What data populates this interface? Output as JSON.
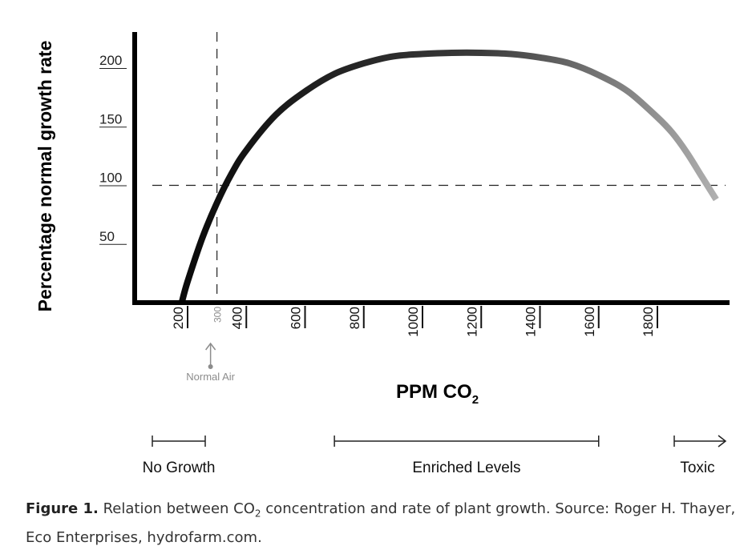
{
  "chart_data": {
    "type": "line",
    "ylabel": "Percentage normal growth rate",
    "xlabel_main": "PPM CO",
    "xlabel_sub": "2",
    "y_ticks": [
      50,
      100,
      150,
      200
    ],
    "x_ticks": [
      200,
      400,
      600,
      800,
      1000,
      1200,
      1400,
      1600,
      1800
    ],
    "normal_air": {
      "x": 300,
      "tick_label": "300",
      "label": "Normal Air"
    },
    "reference_line_y": 100,
    "series": [
      {
        "x": [
          180,
          200,
          250,
          300,
          350,
          400,
          500,
          600,
          700,
          800,
          900,
          1000,
          1100,
          1200,
          1300,
          1400,
          1500,
          1600,
          1700,
          1800,
          1850,
          1900,
          1950,
          2000
        ],
        "y": [
          0,
          18,
          55,
          85,
          110,
          130,
          160,
          180,
          195,
          204,
          210,
          212,
          213,
          213,
          212,
          209,
          204,
          194,
          180,
          158,
          145,
          128,
          108,
          88
        ]
      }
    ],
    "ranges": [
      {
        "label": "No Growth",
        "from": 150,
        "to": 320,
        "end": "bar"
      },
      {
        "label": "Enriched Levels",
        "from": 700,
        "to": 1600,
        "end": "bar"
      },
      {
        "label": "Toxic",
        "from": 1900,
        "to": 2100,
        "end": "arrow"
      }
    ],
    "colors": {
      "line_start": "#0a0a0a",
      "line_end": "#b4b4b4",
      "axis": "#000000",
      "annotation": "#8c8c8c"
    }
  },
  "caption": {
    "figure_label": "Figure 1.",
    "text_before": " Relation between CO",
    "sub": "2",
    "text_after": " concentration and rate of plant growth. Source: Roger H. Thayer, Eco Enterprises, hydrofarm.com."
  }
}
